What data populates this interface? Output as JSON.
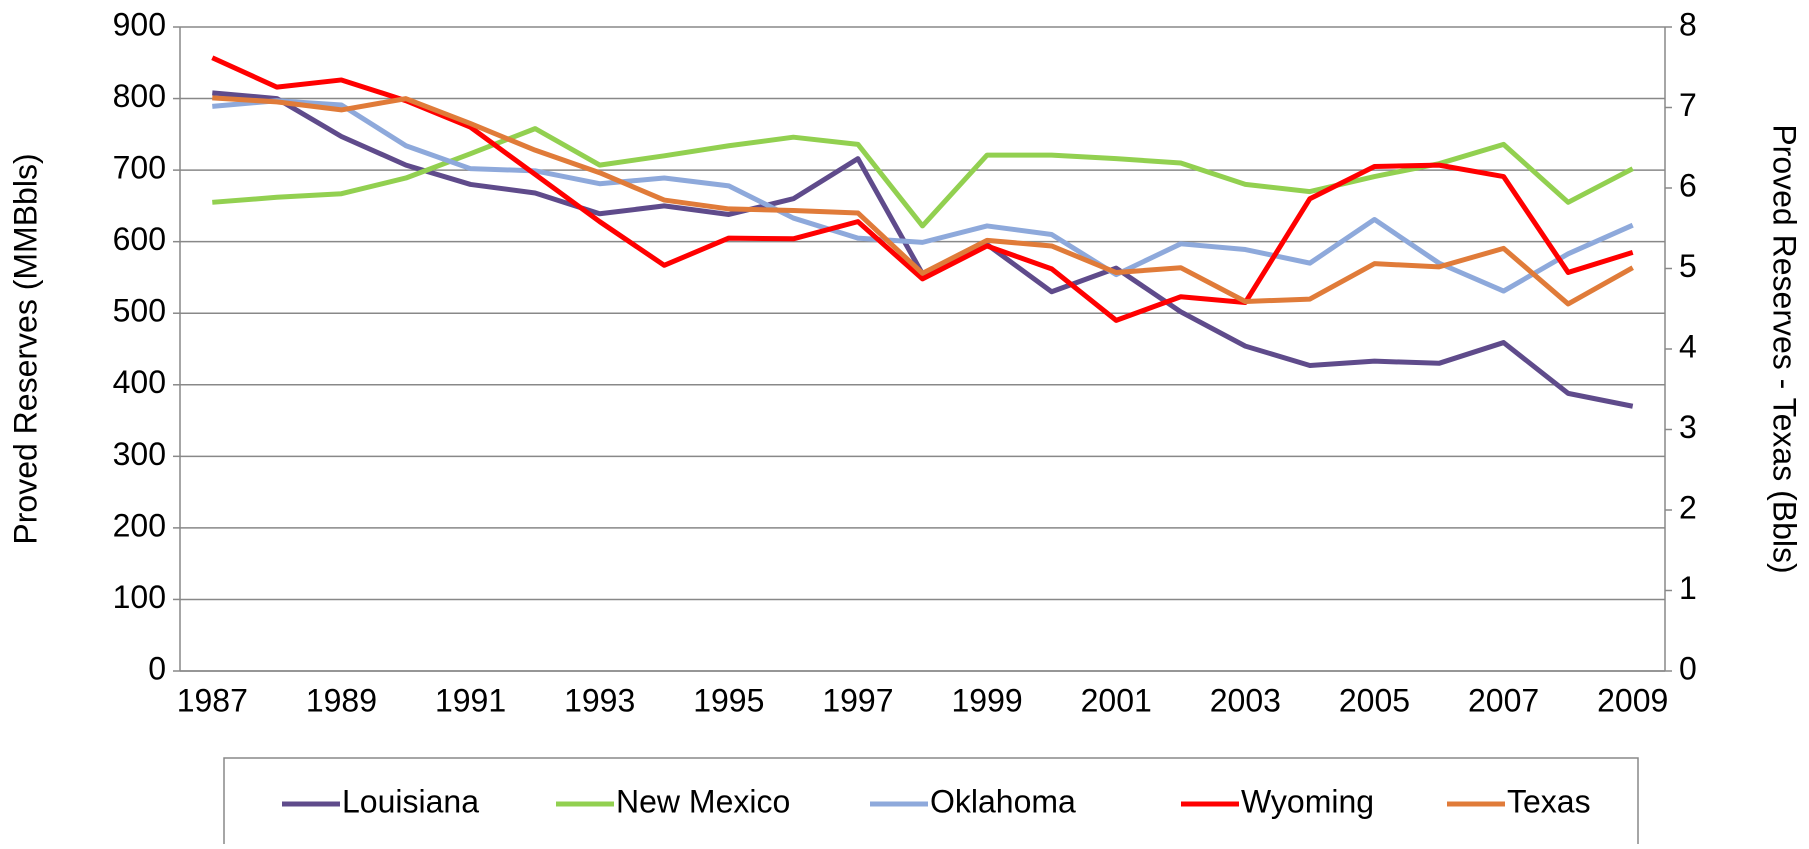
{
  "chart_data": {
    "type": "line",
    "y_label": "Proved Reserves (MMBbls)",
    "y2_label": "Proved Reserves - Texas (Bbls)",
    "categories": [
      "1987",
      null,
      "1989",
      null,
      "1991",
      null,
      "1993",
      null,
      "1995",
      null,
      "1997",
      null,
      "1999",
      null,
      "2001",
      null,
      "2003",
      null,
      "2005",
      null,
      "2007",
      null,
      "2009"
    ],
    "ylim": [
      0,
      900
    ],
    "yticks": [
      0,
      100,
      200,
      300,
      400,
      500,
      600,
      700,
      800,
      900
    ],
    "y2lim": [
      0,
      8
    ],
    "y2ticks": [
      0,
      1,
      2,
      3,
      4,
      5,
      6,
      7,
      8
    ],
    "grid": true,
    "legend": "bottom",
    "series": [
      {
        "name": "Louisiana",
        "color": "#5f4b8b",
        "values": [
          808,
          800,
          747,
          707,
          680,
          668,
          639,
          650,
          638,
          660,
          716,
          555,
          596,
          530,
          563,
          502,
          454,
          427,
          433,
          430,
          459,
          388,
          370
        ]
      },
      {
        "name": "New Mexico",
        "color": "#92d050",
        "values": [
          655,
          662,
          667,
          689,
          723,
          758,
          707,
          720,
          734,
          746,
          736,
          622,
          721,
          721,
          716,
          710,
          680,
          670,
          691,
          709,
          736,
          655,
          702
        ]
      },
      {
        "name": "Oklahoma",
        "color": "#8ea9db",
        "values": [
          789,
          797,
          791,
          734,
          702,
          699,
          681,
          689,
          678,
          633,
          605,
          599,
          622,
          610,
          554,
          597,
          589,
          570,
          631,
          570,
          531,
          583,
          623
        ]
      },
      {
        "name": "Wyoming",
        "color": "#ff0000",
        "values": [
          857,
          816,
          826,
          797,
          760,
          694,
          628,
          567,
          605,
          604,
          628,
          548,
          594,
          562,
          490,
          523,
          515,
          660,
          705,
          707,
          691,
          557,
          585
        ]
      },
      {
        "name": "Texas",
        "color": "#e07b39",
        "axis": "y2",
        "values": [
          7.12,
          7.07,
          6.97,
          7.11,
          6.8,
          6.47,
          6.19,
          5.85,
          5.74,
          5.72,
          5.69,
          4.94,
          5.35,
          5.28,
          4.95,
          5.01,
          4.59,
          4.62,
          5.06,
          5.02,
          5.25,
          4.56,
          5.01
        ]
      }
    ]
  }
}
